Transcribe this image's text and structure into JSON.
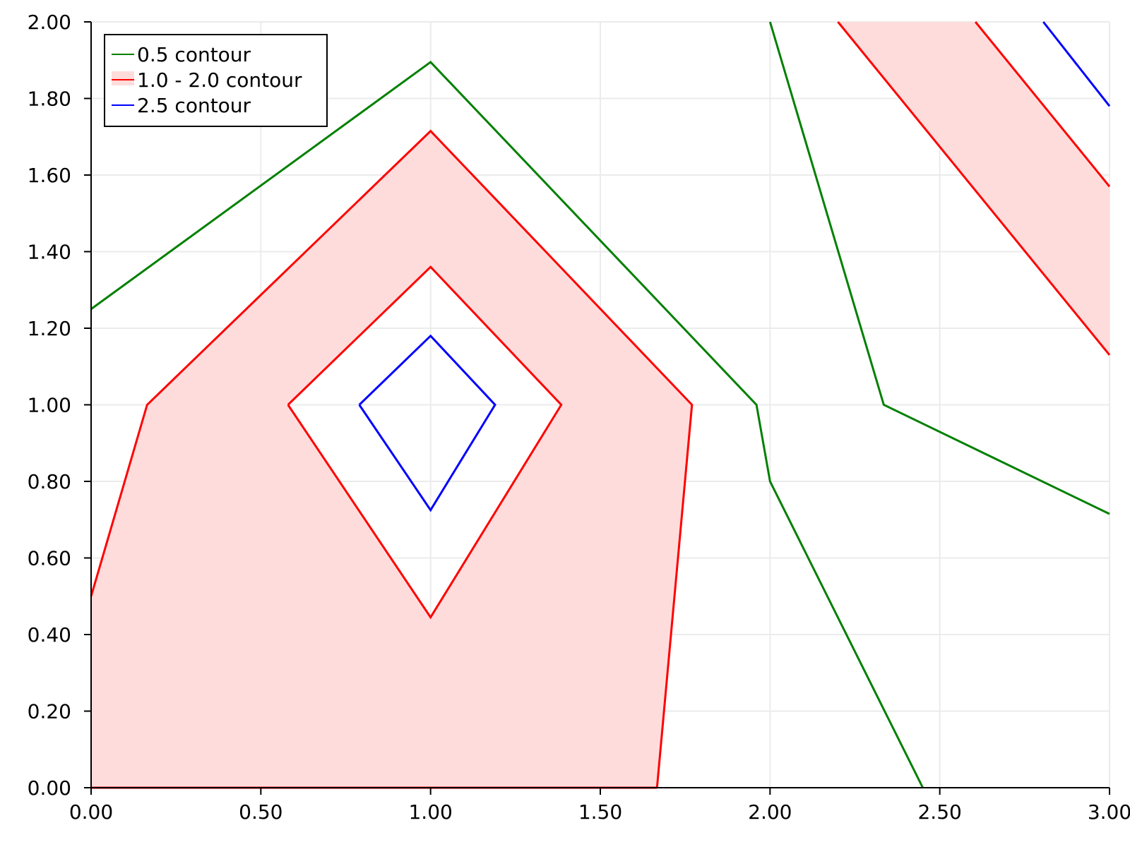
{
  "chart_data": {
    "type": "contour",
    "xlim": [
      0,
      3
    ],
    "ylim": [
      0,
      2
    ],
    "grid": true,
    "legend_placement": "top-left",
    "x_ticks": [
      "0.00",
      "0.50",
      "1.00",
      "1.50",
      "2.00",
      "2.50",
      "3.00"
    ],
    "y_ticks": [
      "0.00",
      "0.20",
      "0.40",
      "0.60",
      "0.80",
      "1.00",
      "1.20",
      "1.40",
      "1.60",
      "1.80",
      "2.00"
    ],
    "legend": [
      {
        "label": "0.5 contour",
        "color": "#008000"
      },
      {
        "label": "1.0 - 2.0 contour",
        "color": "#ff0000",
        "fill": "#ffdcdc"
      },
      {
        "label": "2.5 contour",
        "color": "#0000ff"
      }
    ],
    "fill_regions": [
      {
        "name": "band-left",
        "outer": [
          [
            0,
            0
          ],
          [
            1.667,
            0
          ],
          [
            1.77,
            1.0
          ],
          [
            1.0,
            1.715
          ],
          [
            0.165,
            1.0
          ],
          [
            0,
            0.5
          ]
        ],
        "hole": [
          [
            0.58,
            1.0
          ],
          [
            1.0,
            1.36
          ],
          [
            1.385,
            1.0
          ],
          [
            1.0,
            0.445
          ]
        ]
      },
      {
        "name": "band-right",
        "outer": [
          [
            2.2,
            2.0
          ],
          [
            2.605,
            2.0
          ],
          [
            3.0,
            1.57
          ],
          [
            3.0,
            1.13
          ]
        ]
      }
    ],
    "series": [
      {
        "level": 0.5,
        "color": "#008000",
        "x": [
          0,
          1.0,
          1.96,
          2.0,
          2.45
        ],
        "y": [
          1.25,
          1.895,
          1.0,
          0.8,
          0
        ]
      },
      {
        "level": 0.5,
        "color": "#008000",
        "x": [
          2.0,
          2.335,
          3.0
        ],
        "y": [
          2.0,
          1.0,
          0.715
        ]
      },
      {
        "level": 1.0,
        "color": "#ff0000",
        "x": [
          0,
          0.165,
          1.0,
          1.77,
          1.667
        ],
        "y": [
          0.5,
          1.0,
          1.715,
          1.0,
          0
        ]
      },
      {
        "level": 1.0,
        "color": "#ff0000",
        "x": [
          2.2,
          3.0
        ],
        "y": [
          2.0,
          1.13
        ]
      },
      {
        "level": 2.0,
        "color": "#ff0000",
        "x": [
          0.58,
          1.0,
          1.385,
          1.0,
          0.58
        ],
        "y": [
          1.0,
          1.36,
          1.0,
          0.445,
          1.0
        ]
      },
      {
        "level": 2.0,
        "color": "#ff0000",
        "x": [
          2.605,
          3.0
        ],
        "y": [
          2.0,
          1.57
        ]
      },
      {
        "level": 2.0,
        "color": "#ff0000",
        "x": [
          0,
          1.667
        ],
        "y": [
          0,
          0
        ]
      },
      {
        "level": 2.5,
        "color": "#0000ff",
        "x": [
          0.79,
          1.0,
          1.19,
          1.0,
          0.79
        ],
        "y": [
          1.0,
          1.18,
          1.0,
          0.725,
          1.0
        ]
      },
      {
        "level": 2.5,
        "color": "#0000ff",
        "x": [
          2.805,
          3.0
        ],
        "y": [
          2.0,
          1.78
        ]
      }
    ]
  }
}
